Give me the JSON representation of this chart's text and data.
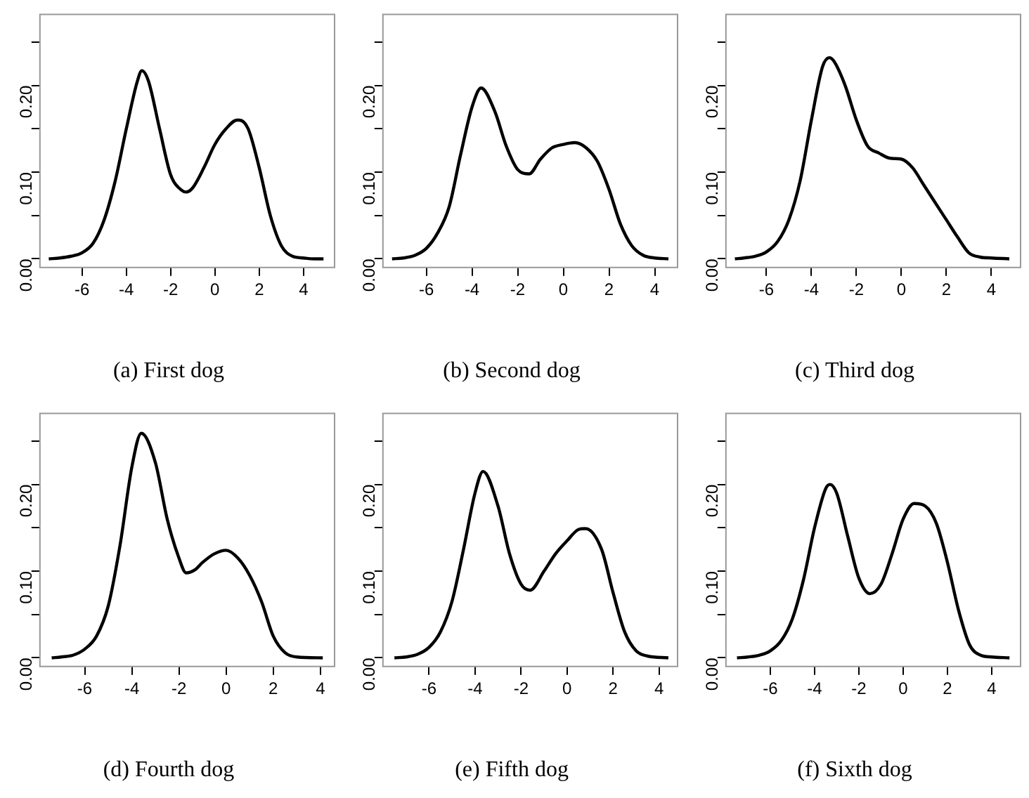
{
  "chart_data": [
    {
      "type": "line",
      "title": "(a) First dog",
      "color": "#000000",
      "marker": "none",
      "line_style": "solid",
      "grid": false,
      "xlim": [
        -7.9,
        5.4
      ],
      "ylim": [
        -0.01,
        0.282
      ],
      "xticks": [
        -6,
        -4,
        -2,
        0,
        2,
        4
      ],
      "yticks": [
        {
          "value": 0,
          "label": "0.00"
        },
        {
          "value": 0.05,
          "label": null
        },
        {
          "value": 0.1,
          "label": "0.10"
        },
        {
          "value": 0.15,
          "label": null
        },
        {
          "value": 0.2,
          "label": "0.20"
        },
        {
          "value": 0.25,
          "label": null
        }
      ],
      "x": [
        -7.5,
        -7,
        -6.5,
        -6,
        -5.5,
        -5,
        -4.5,
        -4,
        -3.5,
        -3.3,
        -3,
        -2.5,
        -2,
        -1.5,
        -1.3,
        -1,
        -0.5,
        0,
        0.5,
        1,
        1.1,
        1.5,
        2,
        2.5,
        3,
        3.5,
        4,
        4.5,
        4.9
      ],
      "values": [
        0,
        0.001,
        0.003,
        0.007,
        0.018,
        0.045,
        0.09,
        0.15,
        0.205,
        0.217,
        0.205,
        0.15,
        0.097,
        0.079,
        0.077,
        0.082,
        0.105,
        0.132,
        0.15,
        0.16,
        0.16,
        0.15,
        0.105,
        0.05,
        0.015,
        0.003,
        0.001,
        0,
        0
      ]
    },
    {
      "type": "line",
      "title": "(b) Second dog",
      "color": "#000000",
      "marker": "none",
      "line_style": "solid",
      "grid": false,
      "xlim": [
        -7.9,
        5.0
      ],
      "ylim": [
        -0.01,
        0.282
      ],
      "xticks": [
        -6,
        -4,
        -2,
        0,
        2,
        4
      ],
      "yticks": [
        {
          "value": 0,
          "label": "0.00"
        },
        {
          "value": 0.05,
          "label": null
        },
        {
          "value": 0.1,
          "label": "0.10"
        },
        {
          "value": 0.15,
          "label": null
        },
        {
          "value": 0.2,
          "label": "0.20"
        },
        {
          "value": 0.25,
          "label": null
        }
      ],
      "x": [
        -7.5,
        -7,
        -6.5,
        -6,
        -5.5,
        -5,
        -4.5,
        -4,
        -3.6,
        -3,
        -2.5,
        -2,
        -1.5,
        -1,
        -0.5,
        0,
        0.5,
        1,
        1.5,
        2,
        2.5,
        3,
        3.5,
        4,
        4.6
      ],
      "values": [
        0,
        0.001,
        0.004,
        0.012,
        0.03,
        0.06,
        0.12,
        0.175,
        0.197,
        0.17,
        0.13,
        0.103,
        0.098,
        0.115,
        0.128,
        0.132,
        0.134,
        0.128,
        0.112,
        0.08,
        0.04,
        0.015,
        0.004,
        0.001,
        0
      ]
    },
    {
      "type": "line",
      "title": "(c) Third dog",
      "color": "#000000",
      "marker": "none",
      "line_style": "solid",
      "grid": false,
      "xlim": [
        -7.8,
        5.3
      ],
      "ylim": [
        -0.01,
        0.282
      ],
      "xticks": [
        -6,
        -4,
        -2,
        0,
        2,
        4
      ],
      "yticks": [
        {
          "value": 0,
          "label": "0.00"
        },
        {
          "value": 0.05,
          "label": null
        },
        {
          "value": 0.1,
          "label": "0.10"
        },
        {
          "value": 0.15,
          "label": null
        },
        {
          "value": 0.2,
          "label": "0.20"
        },
        {
          "value": 0.25,
          "label": null
        }
      ],
      "x": [
        -7.4,
        -7,
        -6.5,
        -6,
        -5.5,
        -5,
        -4.5,
        -4,
        -3.5,
        -3.2,
        -3,
        -2.5,
        -2,
        -1.5,
        -1,
        -0.5,
        0,
        0.5,
        1,
        1.5,
        2,
        2.5,
        3,
        3.5,
        4,
        4.8
      ],
      "values": [
        0,
        0.001,
        0.003,
        0.008,
        0.02,
        0.045,
        0.09,
        0.16,
        0.222,
        0.232,
        0.228,
        0.2,
        0.16,
        0.13,
        0.122,
        0.116,
        0.115,
        0.105,
        0.085,
        0.065,
        0.045,
        0.025,
        0.007,
        0.002,
        0.001,
        0
      ]
    },
    {
      "type": "line",
      "title": "(d) Fourth dog",
      "color": "#000000",
      "marker": "none",
      "line_style": "solid",
      "grid": false,
      "xlim": [
        -7.9,
        4.6
      ],
      "ylim": [
        -0.01,
        0.282
      ],
      "xticks": [
        -6,
        -4,
        -2,
        0,
        2,
        4
      ],
      "yticks": [
        {
          "value": 0,
          "label": "0.00"
        },
        {
          "value": 0.05,
          "label": null
        },
        {
          "value": 0.1,
          "label": "0.10"
        },
        {
          "value": 0.15,
          "label": null
        },
        {
          "value": 0.2,
          "label": "0.20"
        },
        {
          "value": 0.25,
          "label": null
        }
      ],
      "x": [
        -7.4,
        -7,
        -6.5,
        -6,
        -5.5,
        -5,
        -4.5,
        -4,
        -3.6,
        -3,
        -2.5,
        -2,
        -1.7,
        -1.3,
        -1,
        -0.5,
        0,
        0.5,
        1,
        1.5,
        2,
        2.5,
        3,
        4.1
      ],
      "values": [
        0,
        0.001,
        0.003,
        0.01,
        0.025,
        0.06,
        0.13,
        0.22,
        0.259,
        0.225,
        0.16,
        0.115,
        0.098,
        0.102,
        0.11,
        0.12,
        0.124,
        0.115,
        0.095,
        0.065,
        0.025,
        0.006,
        0.001,
        0
      ]
    },
    {
      "type": "line",
      "title": "(e) Fifth dog",
      "color": "#000000",
      "marker": "none",
      "line_style": "solid",
      "grid": false,
      "xlim": [
        -8.0,
        4.8
      ],
      "ylim": [
        -0.01,
        0.282
      ],
      "xticks": [
        -6,
        -4,
        -2,
        0,
        2,
        4
      ],
      "yticks": [
        {
          "value": 0,
          "label": "0.00"
        },
        {
          "value": 0.05,
          "label": null
        },
        {
          "value": 0.1,
          "label": "0.10"
        },
        {
          "value": 0.15,
          "label": null
        },
        {
          "value": 0.2,
          "label": "0.20"
        },
        {
          "value": 0.25,
          "label": null
        }
      ],
      "x": [
        -7.5,
        -7,
        -6.5,
        -6,
        -5.5,
        -5,
        -4.5,
        -4,
        -3.65,
        -3,
        -2.5,
        -2,
        -1.6,
        -1,
        -0.5,
        0,
        0.5,
        0.8,
        1.5,
        2,
        2.5,
        3,
        3.5,
        4.4
      ],
      "values": [
        0,
        0.001,
        0.004,
        0.012,
        0.03,
        0.065,
        0.125,
        0.19,
        0.215,
        0.175,
        0.12,
        0.085,
        0.078,
        0.1,
        0.12,
        0.135,
        0.148,
        0.149,
        0.125,
        0.075,
        0.03,
        0.008,
        0.002,
        0
      ]
    },
    {
      "type": "line",
      "title": "(f) Sixth dog",
      "color": "#000000",
      "marker": "none",
      "line_style": "solid",
      "grid": false,
      "xlim": [
        -8.0,
        5.3
      ],
      "ylim": [
        -0.01,
        0.282
      ],
      "xticks": [
        -6,
        -4,
        -2,
        0,
        2,
        4
      ],
      "yticks": [
        {
          "value": 0,
          "label": "0.00"
        },
        {
          "value": 0.05,
          "label": null
        },
        {
          "value": 0.1,
          "label": "0.10"
        },
        {
          "value": 0.15,
          "label": null
        },
        {
          "value": 0.2,
          "label": "0.20"
        },
        {
          "value": 0.25,
          "label": null
        }
      ],
      "x": [
        -7.5,
        -7,
        -6.5,
        -6,
        -5.5,
        -5,
        -4.5,
        -4,
        -3.5,
        -3.3,
        -3,
        -2.5,
        -2,
        -1.5,
        -1,
        -0.5,
        0,
        0.5,
        1,
        1.5,
        2,
        2.5,
        3,
        3.5,
        4,
        4.8
      ],
      "values": [
        0,
        0.001,
        0.003,
        0.008,
        0.02,
        0.045,
        0.09,
        0.15,
        0.195,
        0.2,
        0.19,
        0.14,
        0.092,
        0.074,
        0.085,
        0.12,
        0.16,
        0.178,
        0.175,
        0.155,
        0.11,
        0.055,
        0.015,
        0.003,
        0.001,
        0
      ]
    }
  ]
}
